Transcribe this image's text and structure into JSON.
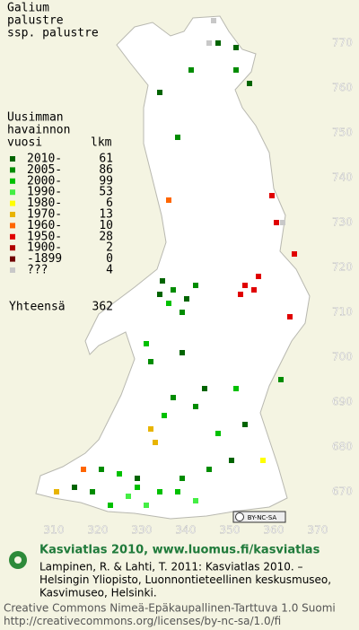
{
  "title": [
    "Galium",
    "palustre",
    "ssp. palustre"
  ],
  "legend": {
    "heading": [
      "Uusimman",
      "havainnon"
    ],
    "year_header": "vuosi",
    "count_header": "lkm",
    "rows": [
      {
        "label": "2010-",
        "count": 61,
        "color": "#006400"
      },
      {
        "label": "2005-",
        "count": 86,
        "color": "#008c00"
      },
      {
        "label": "2000-",
        "count": 99,
        "color": "#00c000"
      },
      {
        "label": "1990-",
        "count": 53,
        "color": "#44ee44"
      },
      {
        "label": "1980-",
        "count": 6,
        "color": "#ffff00"
      },
      {
        "label": "1970-",
        "count": 13,
        "color": "#e8b400"
      },
      {
        "label": "1960-",
        "count": 10,
        "color": "#ff6600"
      },
      {
        "label": "1950-",
        "count": 28,
        "color": "#e00000"
      },
      {
        "label": "1900-",
        "count": 2,
        "color": "#b00000"
      },
      {
        "label": "-1899",
        "count": 0,
        "color": "#700000"
      },
      {
        "label": "???",
        "count": 4,
        "color": "#c8c8c8"
      }
    ],
    "total": {
      "label": "Yhteensä",
      "count": 362
    }
  },
  "northing_labels": [
    770,
    760,
    750,
    740,
    730,
    720,
    710,
    700,
    690,
    680,
    670
  ],
  "easting_labels": [
    310,
    320,
    330,
    340,
    350,
    360,
    370
  ],
  "license_badge": "BY-NC-SA",
  "footer": {
    "site": "Kasviatlas 2010, www.luomus.fi/kasviatlas",
    "citation": [
      "Lampinen, R. & Lahti, T. 2011: Kasviatlas 2010. –",
      "Helsingin Yliopisto, Luonnontieteellinen keskusmuseo,",
      "Kasvimuseo, Helsinki."
    ],
    "license": [
      "Creative Commons Nimeä-Epäkaupallinen-Tarttuva 1.0 Suomi",
      "http://creativecommons.org/licenses/by-nc-sa/1.0/fi"
    ]
  }
}
